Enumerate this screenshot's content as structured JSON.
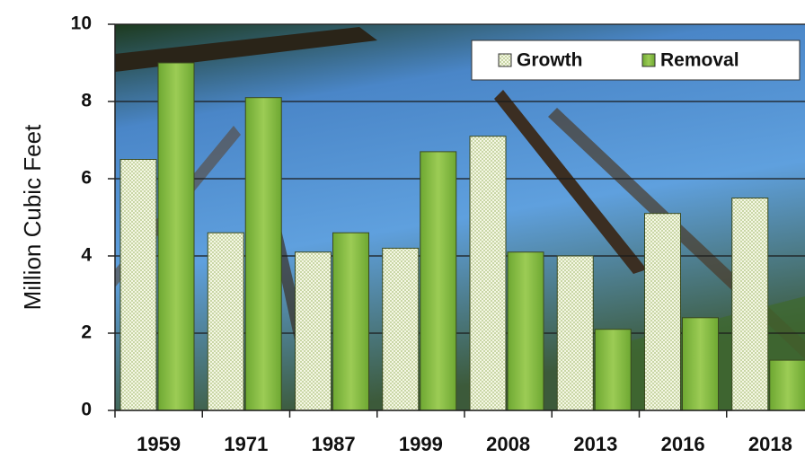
{
  "chart_data": {
    "type": "bar",
    "y_label": "Million Cubic Feet",
    "categories": [
      "1959",
      "1971",
      "1987",
      "1999",
      "2008",
      "2013",
      "2016",
      "2018"
    ],
    "series": [
      {
        "name": "Growth",
        "color": "#e8f0d0",
        "values": [
          6.5,
          4.6,
          4.1,
          4.2,
          7.1,
          4.0,
          5.1,
          5.5
        ]
      },
      {
        "name": "Removal",
        "color": "#8dbf45",
        "values": [
          9.0,
          8.1,
          4.6,
          6.7,
          4.1,
          2.1,
          2.4,
          1.3
        ]
      }
    ],
    "ylim": [
      0,
      10
    ],
    "yticks": [
      0,
      2,
      4,
      6,
      8,
      10
    ],
    "grid": true,
    "legend": "top-right"
  }
}
